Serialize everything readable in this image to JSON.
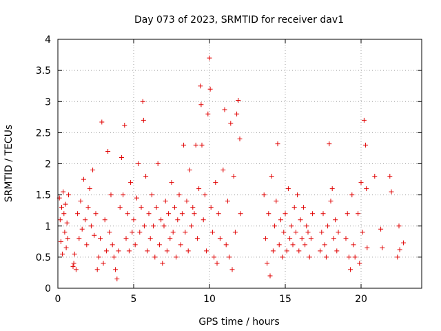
{
  "chart_data": {
    "type": "scatter",
    "title": "Day 073 of 2023, SRMTID for receiver dav1",
    "xlabel": "GPS time / hours",
    "ylabel": "SRMTID / TECUs",
    "xlim": [
      0,
      24
    ],
    "ylim": [
      0,
      4
    ],
    "x_ticks": [
      "0",
      "5",
      "10",
      "15",
      "20"
    ],
    "y_ticks": [
      "0",
      "0.5",
      "1",
      "1.5",
      "2",
      "2.5",
      "3",
      "3.5",
      "4"
    ],
    "grid": "dotted",
    "marker": "plus",
    "color": "#e00000",
    "series": [
      {
        "name": "SRMTID",
        "points": [
          [
            0.1,
            1.45
          ],
          [
            0.15,
            1.1
          ],
          [
            0.2,
            0.75
          ],
          [
            0.25,
            1.3
          ],
          [
            0.3,
            0.55
          ],
          [
            0.35,
            1.55
          ],
          [
            0.4,
            1.2
          ],
          [
            0.45,
            0.9
          ],
          [
            0.5,
            1.35
          ],
          [
            0.55,
            0.65
          ],
          [
            0.6,
            1.05
          ],
          [
            0.65,
            0.8
          ],
          [
            0.7,
            1.5
          ],
          [
            1.0,
            0.35
          ],
          [
            1.05,
            0.4
          ],
          [
            1.1,
            0.55
          ],
          [
            1.2,
            0.3
          ],
          [
            1.3,
            1.2
          ],
          [
            1.4,
            0.8
          ],
          [
            1.5,
            1.4
          ],
          [
            1.6,
            0.95
          ],
          [
            1.7,
            1.75
          ],
          [
            1.8,
            1.1
          ],
          [
            1.9,
            0.7
          ],
          [
            2.0,
            1.3
          ],
          [
            2.1,
            1.6
          ],
          [
            2.2,
            1.0
          ],
          [
            2.3,
            1.9
          ],
          [
            2.4,
            0.85
          ],
          [
            2.5,
            1.2
          ],
          [
            2.6,
            0.3
          ],
          [
            2.7,
            0.5
          ],
          [
            2.8,
            0.8
          ],
          [
            2.9,
            2.67
          ],
          [
            3.0,
            0.4
          ],
          [
            3.1,
            1.1
          ],
          [
            3.2,
            0.6
          ],
          [
            3.3,
            2.2
          ],
          [
            3.4,
            0.9
          ],
          [
            3.5,
            1.5
          ],
          [
            3.6,
            0.7
          ],
          [
            3.7,
            0.5
          ],
          [
            3.8,
            0.3
          ],
          [
            3.9,
            0.15
          ],
          [
            4.0,
            0.6
          ],
          [
            4.1,
            1.3
          ],
          [
            4.2,
            2.1
          ],
          [
            4.3,
            1.5
          ],
          [
            4.4,
            2.62
          ],
          [
            4.5,
            0.8
          ],
          [
            4.6,
            1.2
          ],
          [
            4.7,
            0.6
          ],
          [
            4.8,
            1.7
          ],
          [
            4.9,
            0.9
          ],
          [
            5.0,
            1.1
          ],
          [
            5.1,
            0.7
          ],
          [
            5.2,
            1.45
          ],
          [
            5.3,
            2.0
          ],
          [
            5.4,
            0.9
          ],
          [
            5.5,
            1.3
          ],
          [
            5.6,
            3.0
          ],
          [
            5.65,
            2.7
          ],
          [
            5.7,
            1.0
          ],
          [
            5.8,
            1.8
          ],
          [
            5.9,
            0.6
          ],
          [
            6.0,
            1.2
          ],
          [
            6.1,
            0.8
          ],
          [
            6.2,
            1.5
          ],
          [
            6.3,
            1.0
          ],
          [
            6.4,
            0.5
          ],
          [
            6.5,
            1.3
          ],
          [
            6.6,
            2.0
          ],
          [
            6.7,
            0.7
          ],
          [
            6.8,
            1.1
          ],
          [
            6.9,
            0.4
          ],
          [
            7.0,
            1.0
          ],
          [
            7.1,
            1.4
          ],
          [
            7.2,
            0.6
          ],
          [
            7.3,
            1.2
          ],
          [
            7.4,
            0.8
          ],
          [
            7.5,
            1.7
          ],
          [
            7.6,
            0.9
          ],
          [
            7.7,
            1.3
          ],
          [
            7.8,
            0.5
          ],
          [
            7.9,
            1.1
          ],
          [
            8.0,
            1.5
          ],
          [
            8.1,
            0.7
          ],
          [
            8.2,
            1.2
          ],
          [
            8.3,
            2.3
          ],
          [
            8.4,
            0.9
          ],
          [
            8.5,
            1.4
          ],
          [
            8.6,
            0.6
          ],
          [
            8.7,
            1.9
          ],
          [
            8.8,
            1.0
          ],
          [
            8.9,
            1.3
          ],
          [
            9.0,
            1.2
          ],
          [
            9.1,
            2.3
          ],
          [
            9.2,
            0.8
          ],
          [
            9.3,
            1.6
          ],
          [
            9.4,
            3.25
          ],
          [
            9.45,
            2.95
          ],
          [
            9.5,
            2.3
          ],
          [
            9.6,
            1.1
          ],
          [
            9.7,
            1.5
          ],
          [
            9.8,
            0.6
          ],
          [
            9.9,
            2.8
          ],
          [
            10.0,
            3.7
          ],
          [
            10.05,
            3.2
          ],
          [
            10.1,
            1.3
          ],
          [
            10.2,
            0.9
          ],
          [
            10.3,
            0.5
          ],
          [
            10.4,
            1.7
          ],
          [
            10.5,
            0.4
          ],
          [
            10.6,
            1.2
          ],
          [
            10.7,
            0.8
          ],
          [
            10.9,
            1.9
          ],
          [
            11.0,
            2.87
          ],
          [
            11.1,
            0.7
          ],
          [
            11.2,
            1.4
          ],
          [
            11.3,
            0.5
          ],
          [
            11.4,
            2.65
          ],
          [
            11.5,
            0.3
          ],
          [
            11.6,
            1.8
          ],
          [
            11.7,
            0.9
          ],
          [
            11.8,
            2.8
          ],
          [
            11.9,
            3.02
          ],
          [
            12.0,
            2.4
          ],
          [
            12.05,
            1.2
          ],
          [
            13.6,
            1.5
          ],
          [
            13.7,
            0.8
          ],
          [
            13.8,
            0.4
          ],
          [
            13.9,
            1.2
          ],
          [
            14.0,
            0.2
          ],
          [
            14.1,
            1.8
          ],
          [
            14.2,
            0.6
          ],
          [
            14.3,
            1.0
          ],
          [
            14.4,
            1.4
          ],
          [
            14.5,
            2.32
          ],
          [
            14.6,
            0.7
          ],
          [
            14.7,
            1.1
          ],
          [
            14.8,
            0.5
          ],
          [
            14.9,
            0.9
          ],
          [
            15.0,
            1.2
          ],
          [
            15.1,
            0.6
          ],
          [
            15.2,
            1.6
          ],
          [
            15.3,
            0.8
          ],
          [
            15.4,
            1.0
          ],
          [
            15.5,
            0.7
          ],
          [
            15.6,
            1.3
          ],
          [
            15.7,
            0.9
          ],
          [
            15.8,
            1.5
          ],
          [
            15.9,
            0.6
          ],
          [
            16.0,
            1.1
          ],
          [
            16.1,
            0.8
          ],
          [
            16.2,
            1.3
          ],
          [
            16.3,
            0.7
          ],
          [
            16.4,
            1.0
          ],
          [
            16.5,
            0.9
          ],
          [
            16.6,
            0.5
          ],
          [
            16.7,
            0.8
          ],
          [
            16.8,
            1.2
          ],
          [
            17.3,
            0.6
          ],
          [
            17.4,
            0.9
          ],
          [
            17.5,
            1.2
          ],
          [
            17.6,
            0.7
          ],
          [
            17.7,
            0.5
          ],
          [
            17.8,
            1.0
          ],
          [
            17.9,
            2.32
          ],
          [
            18.0,
            1.4
          ],
          [
            18.1,
            1.6
          ],
          [
            18.2,
            0.8
          ],
          [
            18.3,
            1.1
          ],
          [
            18.4,
            0.6
          ],
          [
            18.5,
            0.9
          ],
          [
            19.0,
            0.8
          ],
          [
            19.1,
            1.2
          ],
          [
            19.2,
            0.5
          ],
          [
            19.3,
            0.3
          ],
          [
            19.4,
            1.5
          ],
          [
            19.5,
            0.7
          ],
          [
            19.6,
            0.5
          ],
          [
            19.8,
            1.2
          ],
          [
            19.9,
            0.4
          ],
          [
            20.0,
            1.7
          ],
          [
            20.1,
            0.9
          ],
          [
            20.2,
            2.7
          ],
          [
            20.3,
            2.3
          ],
          [
            20.35,
            1.6
          ],
          [
            20.4,
            0.65
          ],
          [
            20.9,
            1.8
          ],
          [
            21.3,
            0.95
          ],
          [
            21.4,
            0.65
          ],
          [
            21.9,
            1.8
          ],
          [
            22.0,
            1.55
          ],
          [
            22.4,
            0.5
          ],
          [
            22.5,
            1.0
          ],
          [
            22.55,
            0.62
          ],
          [
            22.8,
            0.73
          ]
        ]
      }
    ]
  }
}
